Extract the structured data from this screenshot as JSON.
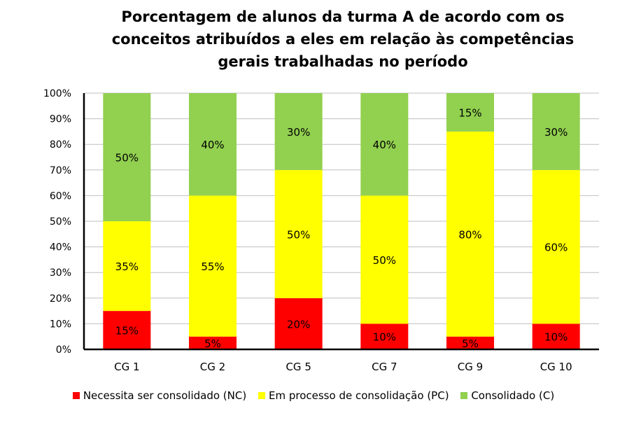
{
  "chart_data": {
    "type": "stacked-bar",
    "title_lines": [
      "Porcentagem de alunos da turma A de acordo com os",
      "conceitos atribuídos a eles em relação às competências",
      "gerais trabalhadas no período"
    ],
    "categories": [
      "CG 1",
      "CG 2",
      "CG 5",
      "CG 7",
      "CG 9",
      "CG 10"
    ],
    "series": [
      {
        "name": "Necessita ser consolidado (NC)",
        "color": "#ff0000",
        "values": [
          15,
          5,
          20,
          10,
          5,
          10
        ],
        "labels": [
          "15%",
          "5%",
          "20%",
          "10%",
          "5%",
          "10%"
        ]
      },
      {
        "name": "Em processo de consolidação (PC)",
        "color": "#ffff00",
        "values": [
          35,
          55,
          50,
          50,
          80,
          60
        ],
        "labels": [
          "35%",
          "55%",
          "50%",
          "50%",
          "80%",
          "60%"
        ]
      },
      {
        "name": "Consolidado (C)",
        "color": "#92d050",
        "values": [
          50,
          40,
          30,
          40,
          15,
          30
        ],
        "labels": [
          "50%",
          "40%",
          "30%",
          "40%",
          "15%",
          "30%"
        ]
      }
    ],
    "y_ticks": [
      "0%",
      "10%",
      "20%",
      "30%",
      "40%",
      "50%",
      "60%",
      "70%",
      "80%",
      "90%",
      "100%"
    ],
    "ylim": [
      0,
      100
    ],
    "grid": true,
    "legend_position": "bottom"
  }
}
